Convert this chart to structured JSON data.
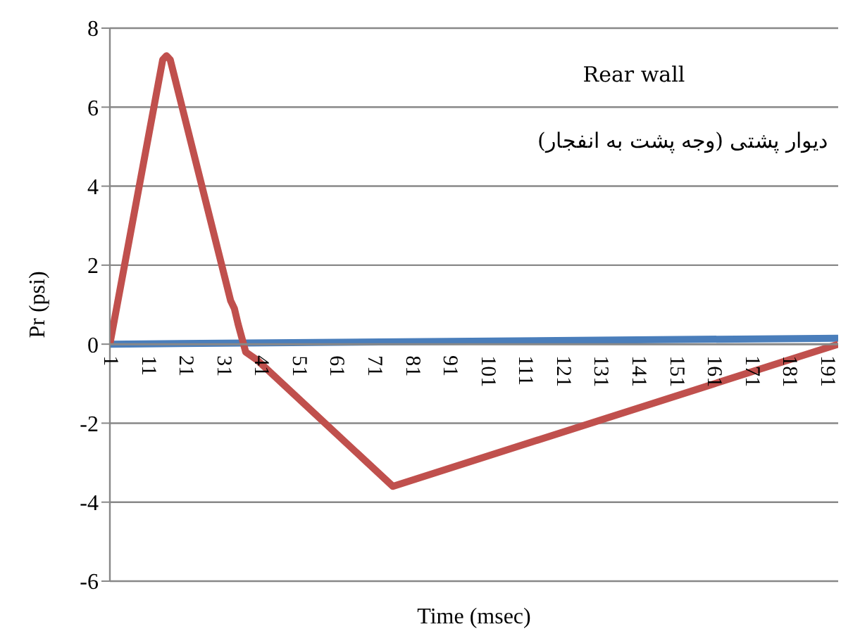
{
  "chart_data": {
    "type": "line",
    "xlabel": "Time (msec)",
    "ylabel": "Pr (psi)",
    "annotations": [
      "Rear wall",
      "دیوار پشتی (وجه پشت به انفجار)"
    ],
    "xlim": [
      1,
      194
    ],
    "xticks": [
      1,
      11,
      21,
      31,
      41,
      51,
      61,
      71,
      81,
      91,
      101,
      111,
      121,
      131,
      141,
      151,
      161,
      171,
      181,
      191
    ],
    "ylim": [
      -6,
      8
    ],
    "yticks": [
      -6,
      -4,
      -2,
      0,
      2,
      4,
      6,
      8
    ],
    "grid": "y",
    "marker": "none",
    "series": [
      {
        "color": "#4a7ebb",
        "x": [
          1,
          194
        ],
        "values": [
          0,
          0.15
        ]
      },
      {
        "color": "#c0504d",
        "x": [
          1,
          15,
          16,
          17,
          33,
          34,
          35,
          37,
          40,
          76,
          194
        ],
        "values": [
          0,
          7.2,
          7.3,
          7.2,
          1.1,
          0.9,
          0.5,
          -0.2,
          -0.4,
          -3.6,
          0
        ]
      }
    ]
  }
}
